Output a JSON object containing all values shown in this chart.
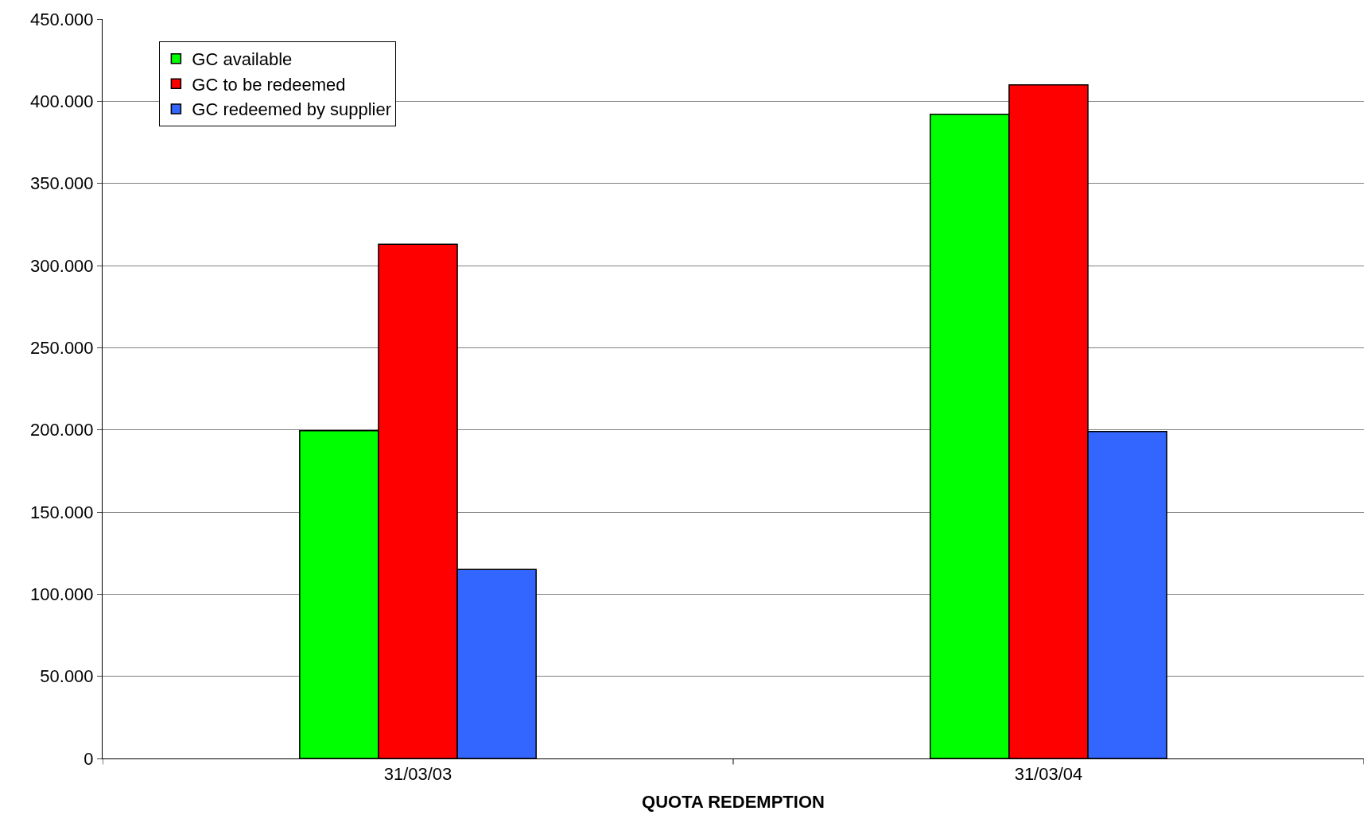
{
  "chart_data": {
    "type": "bar",
    "xlabel": "QUOTA REDEMPTION",
    "categories": [
      "31/03/03",
      "31/03/04"
    ],
    "series": [
      {
        "name": "GC available",
        "color": "#00ff00",
        "values": [
          199500,
          392000
        ]
      },
      {
        "name": "GC to be redeemed",
        "color": "#ff0000",
        "values": [
          313000,
          410000
        ]
      },
      {
        "name": "GC redeemed by supplier",
        "color": "#3366ff",
        "values": [
          115000,
          199000
        ]
      }
    ],
    "ylim": [
      0,
      450000
    ],
    "yticks": [
      0,
      {
        "value": 50000,
        "label": "50.000"
      },
      {
        "value": 100000,
        "label": "100.000"
      },
      {
        "value": 150000,
        "label": "150.000"
      },
      {
        "value": 200000,
        "label": "200.000"
      },
      {
        "value": 250000,
        "label": "250.000"
      },
      {
        "value": 300000,
        "label": "300.000"
      },
      {
        "value": 350000,
        "label": "350.000"
      },
      {
        "value": 400000,
        "label": "400.000"
      },
      {
        "value": 450000,
        "label": "450.000"
      }
    ],
    "grid": "y",
    "legend": "top left"
  }
}
